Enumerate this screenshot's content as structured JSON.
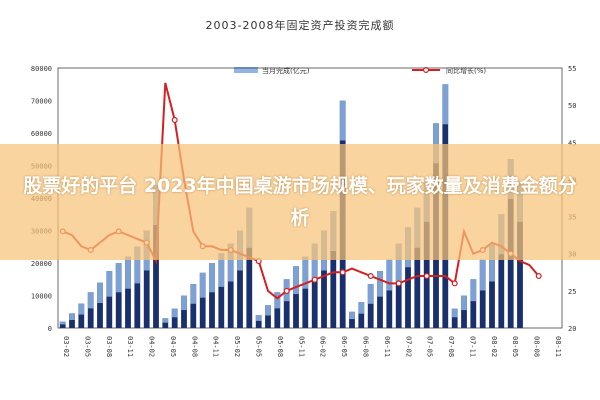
{
  "overlay": {
    "headline": "股票好的平台 2023年中国桌游市场规模、玩家数量及消费金额分析"
  },
  "chart_data": {
    "type": "bar",
    "title": "2003-2008年固定资产投资完成额",
    "legend": {
      "placement": "top",
      "bar_label": "当月完成(亿元)",
      "line_label": "同比增长(%)"
    },
    "left_axis": {
      "ylim": [
        0,
        80000
      ],
      "ticks": [
        "80000",
        "70000",
        "60000",
        "50000",
        "40000",
        "30000",
        "20000",
        "10000",
        "0"
      ]
    },
    "right_axis": {
      "ylim": [
        20,
        55
      ],
      "ticks": [
        "55",
        "50",
        "45",
        "40",
        "35",
        "30",
        "25",
        "20"
      ]
    },
    "x_tick_labels": [
      "03-02",
      "03-05",
      "03-08",
      "03-11",
      "04-02",
      "04-05",
      "04-08",
      "04-11",
      "05-02",
      "05-05",
      "05-08",
      "05-11",
      "06-02",
      "06-05",
      "06-08",
      "06-11",
      "07-02",
      "07-05",
      "07-08",
      "07-11",
      "08-02",
      "08-05",
      "08-08",
      "08-11"
    ],
    "series": [
      {
        "name": "当月完成(亿元)",
        "kind": "bar",
        "color": "#1a2f6e",
        "highlight_color": "#8fb4e8",
        "values": [
          2000,
          4500,
          7500,
          11000,
          14000,
          17500,
          20000,
          22000,
          25000,
          30000,
          44000,
          3000,
          6000,
          10000,
          13500,
          17000,
          20000,
          23000,
          26000,
          30000,
          37000,
          4000,
          7000,
          11000,
          15000,
          19000,
          22000,
          26000,
          30000,
          36000,
          70000,
          5000,
          8000,
          13500,
          17500,
          21000,
          26000,
          31000,
          37000,
          45000,
          63000,
          75000,
          6000,
          10000,
          15000,
          21000,
          26000,
          35000,
          52000,
          45000,
          0,
          0,
          0,
          0
        ]
      },
      {
        "name": "同比增长(%)",
        "kind": "line",
        "color": "#d42020",
        "values": [
          33,
          32.5,
          31,
          30.5,
          31.5,
          32.5,
          33,
          32.5,
          32,
          31.5,
          29,
          53,
          48,
          40,
          33,
          31,
          31,
          30.5,
          30.5,
          30,
          29.5,
          29,
          25,
          24,
          25,
          25.5,
          26,
          26.5,
          27,
          27.5,
          27.5,
          28,
          27.5,
          27,
          26.5,
          26,
          26,
          26.5,
          27,
          27,
          27,
          27,
          26,
          33,
          30,
          30.5,
          31.5,
          31,
          30,
          29,
          28.5,
          27,
          0,
          0
        ]
      }
    ]
  }
}
